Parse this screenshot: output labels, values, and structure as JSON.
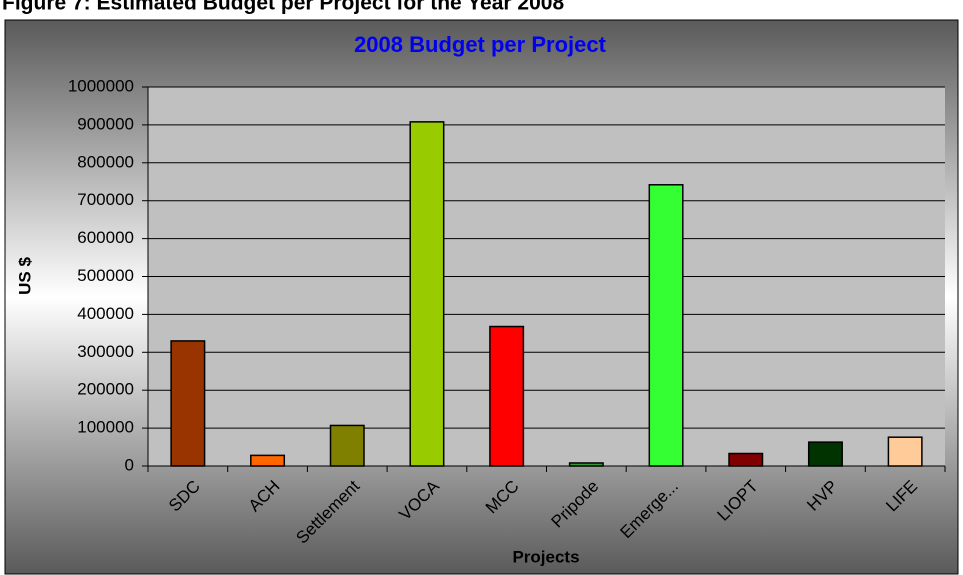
{
  "caption": "Figure 7: Estimated Budget per Project for the Year 2008",
  "chart_data": {
    "type": "bar",
    "title": "2008 Budget per Project",
    "x_label": "Projects",
    "y_label": "US $",
    "categories": [
      "SDC",
      "ACH",
      "Settlement",
      "VOCA",
      "MCC",
      "Pripode",
      "Emerge...",
      "LIOPT",
      "HVP",
      "LIFE"
    ],
    "values": [
      330000,
      28000,
      107000,
      908000,
      368000,
      8000,
      742000,
      33000,
      63000,
      76000
    ],
    "colors": [
      "#993300",
      "#ff6600",
      "#808000",
      "#99cc00",
      "#ff0000",
      "#339933",
      "#33ff33",
      "#800000",
      "#003300",
      "#ffcc99"
    ],
    "ylim": [
      0,
      1000000
    ],
    "yticks": [
      0,
      100000,
      200000,
      300000,
      400000,
      500000,
      600000,
      700000,
      800000,
      900000,
      1000000
    ],
    "grid": true
  }
}
